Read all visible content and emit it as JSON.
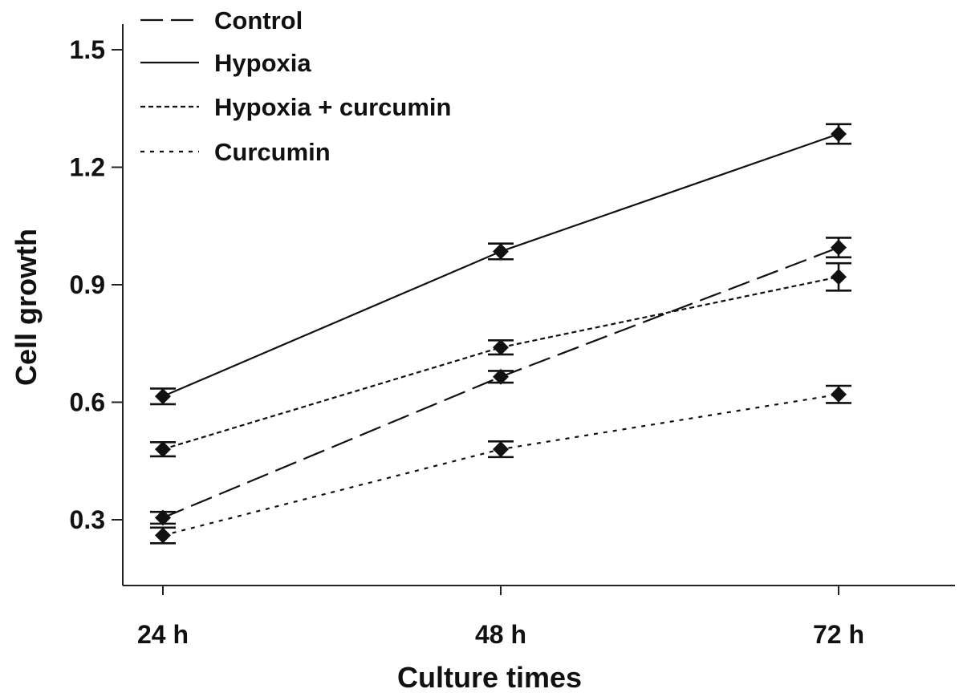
{
  "chart_data": {
    "type": "line",
    "title": "",
    "xlabel": "Culture times",
    "ylabel": "Cell growth",
    "categories": [
      "24 h",
      "48 h",
      "72 h"
    ],
    "yticks": [
      "0.3",
      "0.6",
      "0.9",
      "1.2",
      "1.5"
    ],
    "ytick_values": [
      0.3,
      0.6,
      0.9,
      1.2,
      1.5
    ],
    "ylim": [
      0.1,
      1.58
    ],
    "grid": false,
    "legend_position": "top-left",
    "series": [
      {
        "name": "Control",
        "dash": "long-dash",
        "values": [
          0.305,
          0.665,
          0.995
        ],
        "errors": [
          0.015,
          0.015,
          0.025
        ]
      },
      {
        "name": "Hypoxia",
        "dash": "solid",
        "values": [
          0.615,
          0.985,
          1.285
        ],
        "errors": [
          0.02,
          0.02,
          0.025
        ]
      },
      {
        "name": "Hypoxia + curcumin",
        "dash": "short-dash",
        "values": [
          0.48,
          0.74,
          0.92
        ],
        "errors": [
          0.018,
          0.018,
          0.035
        ]
      },
      {
        "name": "Curcumin",
        "dash": "dotted",
        "values": [
          0.26,
          0.48,
          0.62
        ],
        "errors": [
          0.02,
          0.02,
          0.022
        ]
      }
    ]
  }
}
